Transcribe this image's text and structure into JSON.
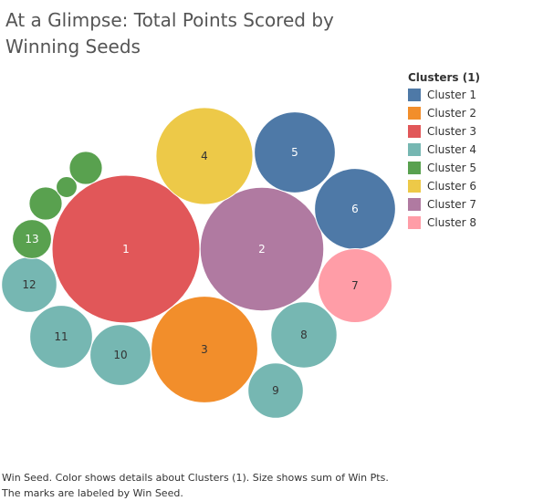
{
  "chart_data": {
    "type": "packed-bubble",
    "title": "At a Glimpse: Total Points Scored by Winning Seeds",
    "legend": {
      "title": "Clusters (1)",
      "placement": "right",
      "entries": [
        {
          "label": "Cluster 1",
          "color": "#4e79a7"
        },
        {
          "label": "Cluster 2",
          "color": "#f28e2b"
        },
        {
          "label": "Cluster 3",
          "color": "#e15759"
        },
        {
          "label": "Cluster 4",
          "color": "#76b7b2"
        },
        {
          "label": "Cluster 5",
          "color": "#59a14f"
        },
        {
          "label": "Cluster 6",
          "color": "#edc948"
        },
        {
          "label": "Cluster 7",
          "color": "#b07aa1"
        },
        {
          "label": "Cluster 8",
          "color": "#ff9da7"
        }
      ]
    },
    "bubbles": [
      {
        "seed": "1",
        "value": 100,
        "cluster": "Cluster 3"
      },
      {
        "seed": "2",
        "value": 70,
        "cluster": "Cluster 7"
      },
      {
        "seed": "3",
        "value": 52,
        "cluster": "Cluster 2"
      },
      {
        "seed": "4",
        "value": 43,
        "cluster": "Cluster 6"
      },
      {
        "seed": "5",
        "value": 30,
        "cluster": "Cluster 1"
      },
      {
        "seed": "6",
        "value": 30,
        "cluster": "Cluster 1"
      },
      {
        "seed": "7",
        "value": 25,
        "cluster": "Cluster 8"
      },
      {
        "seed": "8",
        "value": 20,
        "cluster": "Cluster 4"
      },
      {
        "seed": "9",
        "value": 14,
        "cluster": "Cluster 4"
      },
      {
        "seed": "10",
        "value": 17,
        "cluster": "Cluster 4"
      },
      {
        "seed": "11",
        "value": 18,
        "cluster": "Cluster 4"
      },
      {
        "seed": "12",
        "value": 14,
        "cluster": "Cluster 4"
      },
      {
        "seed": "13",
        "value": 7,
        "cluster": "Cluster 5"
      },
      {
        "seed": "",
        "value": 5,
        "cluster": "Cluster 5"
      },
      {
        "seed": "",
        "value": 5,
        "cluster": "Cluster 5"
      },
      {
        "seed": "",
        "value": 2,
        "cluster": "Cluster 5"
      }
    ]
  },
  "footnote": "Win Seed.  Color shows details about Clusters (1).  Size shows sum of Win Pts.  The marks are labeled by Win Seed."
}
